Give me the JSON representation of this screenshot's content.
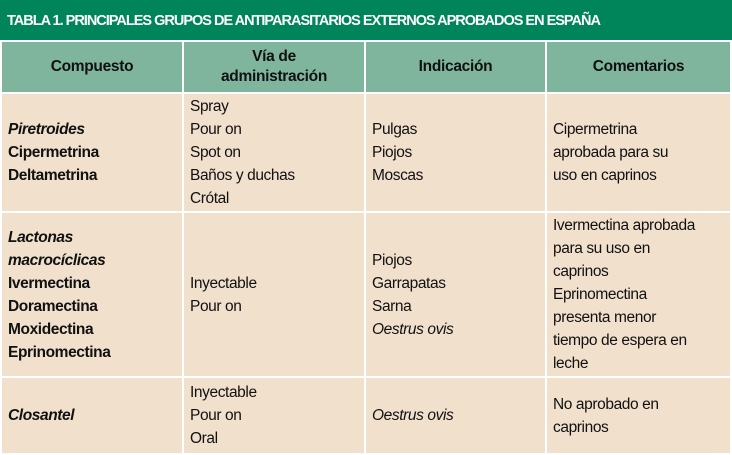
{
  "title": "TABLA 1. PRINCIPALES GRUPOS DE ANTIPARASITARIOS EXTERNOS APROBADOS EN ESPAÑA",
  "columns": [
    "Compuesto",
    "Vía de administración",
    "Indicación",
    "Comentarios"
  ],
  "rows": [
    {
      "compuesto": [
        {
          "t": "Piretroides",
          "s": "b i"
        },
        {
          "t": "Cipermetrina",
          "s": "b"
        },
        {
          "t": "Deltametrina",
          "s": "b"
        }
      ],
      "via": [
        {
          "t": "Spray",
          "s": ""
        },
        {
          "t": "Pour on",
          "s": ""
        },
        {
          "t": "Spot on",
          "s": ""
        },
        {
          "t": "Baños y duchas",
          "s": ""
        },
        {
          "t": "Crótal",
          "s": ""
        }
      ],
      "indicacion": [
        {
          "t": "Pulgas",
          "s": ""
        },
        {
          "t": "Piojos",
          "s": ""
        },
        {
          "t": "Moscas",
          "s": ""
        }
      ],
      "comentarios": [
        {
          "t": "Cipermetrina",
          "s": ""
        },
        {
          "t": "aprobada para su",
          "s": ""
        },
        {
          "t": "uso en caprinos",
          "s": ""
        }
      ]
    },
    {
      "compuesto": [
        {
          "t": "Lactonas",
          "s": "b i"
        },
        {
          "t": "macrocíclicas",
          "s": "b i"
        },
        {
          "t": "Ivermectina",
          "s": "b"
        },
        {
          "t": "Doramectina",
          "s": "b"
        },
        {
          "t": "Moxidectina",
          "s": "b"
        },
        {
          "t": "Eprinomectina",
          "s": "b"
        }
      ],
      "via": [
        {
          "t": "Inyectable",
          "s": ""
        },
        {
          "t": "Pour on",
          "s": ""
        }
      ],
      "indicacion": [
        {
          "t": "Piojos",
          "s": ""
        },
        {
          "t": "Garrapatas",
          "s": ""
        },
        {
          "t": "Sarna",
          "s": ""
        },
        {
          "t": "Oestrus ovis",
          "s": "i"
        }
      ],
      "comentarios": [
        {
          "t": "Ivermectina aprobada",
          "s": ""
        },
        {
          "t": "para su uso en",
          "s": ""
        },
        {
          "t": "caprinos",
          "s": ""
        },
        {
          "t": "Eprinomectina",
          "s": ""
        },
        {
          "t": "presenta menor",
          "s": ""
        },
        {
          "t": "tiempo de espera en",
          "s": ""
        },
        {
          "t": "leche",
          "s": ""
        }
      ]
    },
    {
      "compuesto": [
        {
          "t": "Closantel",
          "s": "b i"
        }
      ],
      "via": [
        {
          "t": "Inyectable",
          "s": ""
        },
        {
          "t": "Pour on",
          "s": ""
        },
        {
          "t": "Oral",
          "s": ""
        }
      ],
      "indicacion": [
        {
          "t": "Oestrus ovis",
          "s": "i"
        }
      ],
      "comentarios": [
        {
          "t": "No aprobado en",
          "s": ""
        },
        {
          "t": "caprinos",
          "s": ""
        }
      ]
    }
  ],
  "colors": {
    "title_bg": "#00845a",
    "header_bg": "#7fb59c",
    "body_bg": "#f0e0cc"
  }
}
